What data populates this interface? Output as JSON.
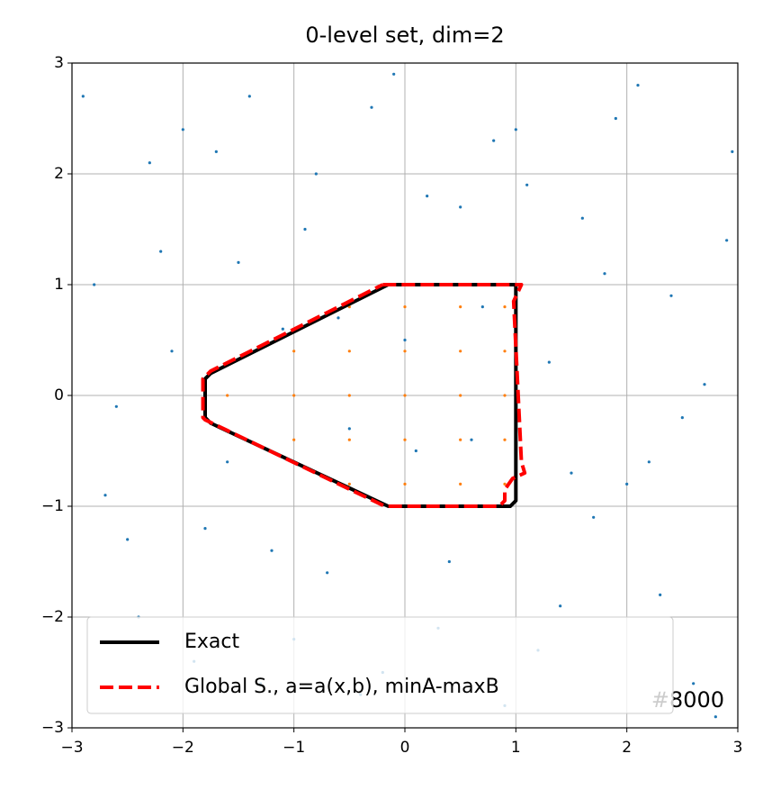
{
  "chart_data": {
    "type": "scatter",
    "title": "0-level set, dim=2",
    "annotation": "#8000",
    "xlim": [
      -3,
      3
    ],
    "ylim": [
      -3,
      3
    ],
    "xticks": [
      {
        "value": -3,
        "label": "−3"
      },
      {
        "value": -2,
        "label": "−2"
      },
      {
        "value": -1,
        "label": "−1"
      },
      0,
      1,
      2,
      3
    ],
    "yticks": [
      {
        "value": -3,
        "label": "−3"
      },
      {
        "value": -2,
        "label": "−2"
      },
      {
        "value": -1,
        "label": "−1"
      },
      0,
      1,
      2,
      3
    ],
    "grid": true,
    "legend": "lower left",
    "scatter_series": [
      {
        "color": "#1f77b4",
        "x": [
          -2.9,
          -2.5,
          -2.1,
          -1.7,
          -1.3,
          -0.9,
          -0.5,
          -0.1,
          0.3,
          0.7,
          1.1,
          1.5,
          1.9,
          2.3,
          2.7,
          -2.7,
          -2.3,
          -1.9,
          -1.5,
          -1.1,
          -0.7,
          -0.3,
          0.1,
          0.5,
          0.9,
          1.3,
          1.7,
          2.1,
          2.5,
          2.9,
          -2.8,
          -2.4,
          -2.0,
          -1.6,
          -1.2,
          -0.8,
          -0.4,
          0.0,
          0.4,
          0.8,
          1.2,
          1.6,
          2.0,
          2.4,
          2.8,
          -2.6,
          -2.2,
          -1.8,
          -1.4,
          -1.0,
          -0.6,
          -0.2,
          0.2,
          0.6,
          1.0,
          1.4,
          1.8,
          2.2,
          2.6,
          2.95
        ],
        "y": [
          2.7,
          -1.3,
          0.4,
          2.2,
          -2.6,
          1.5,
          -0.3,
          2.9,
          -2.1,
          0.8,
          1.9,
          -0.7,
          2.5,
          -1.8,
          0.1,
          -0.9,
          2.1,
          -2.4,
          1.2,
          0.6,
          -1.6,
          2.6,
          -0.5,
          1.7,
          -2.8,
          0.3,
          -1.1,
          2.8,
          -0.2,
          1.4,
          1.0,
          -2.0,
          2.4,
          -0.6,
          -1.4,
          2.0,
          -2.7,
          0.5,
          -1.5,
          2.3,
          -2.3,
          1.6,
          -0.8,
          0.9,
          -2.9,
          -0.1,
          1.3,
          -1.2,
          2.7,
          -2.2,
          0.7,
          -2.5,
          1.8,
          -0.4,
          2.4,
          -1.9,
          1.1,
          -0.6,
          -2.6,
          2.2
        ]
      },
      {
        "color": "#ff7f0e",
        "x": [
          -0.5,
          0,
          0.5,
          0.9,
          -1.0,
          -0.5,
          0,
          0.5,
          0.9,
          -1.6,
          -1.0,
          -0.5,
          0,
          0.5,
          0.9,
          -1.0,
          -0.5,
          0,
          0.5,
          0.9,
          -0.5,
          0,
          0.5,
          0.9
        ],
        "y": [
          0.8,
          0.8,
          0.8,
          0.8,
          0.4,
          0.4,
          0.4,
          0.4,
          0.4,
          0,
          0,
          0,
          0,
          0,
          0,
          -0.4,
          -0.4,
          -0.4,
          -0.4,
          -0.4,
          -0.8,
          -0.8,
          -0.8,
          -0.8
        ]
      }
    ],
    "series": [
      {
        "name": "Exact",
        "color": "#000000",
        "dashed": false,
        "x": [
          -0.15,
          1.0,
          1.0,
          0.95,
          -0.15,
          -1.75,
          -1.8,
          -1.8,
          -1.75,
          -0.15
        ],
        "y": [
          1,
          1,
          -0.95,
          -1,
          -1,
          -0.25,
          -0.2,
          0.15,
          0.2,
          1
        ]
      },
      {
        "name": "Global S., a=a(x,b), minA-maxB",
        "color": "#ff0000",
        "dashed": true,
        "x": [
          -0.2,
          1.05,
          0.98,
          1.05,
          1.08,
          0.97,
          0.9,
          0.9,
          0.85,
          -0.18,
          -1.8,
          -1.82,
          -1.82,
          -1.75,
          -0.2
        ],
        "y": [
          1,
          1,
          0.85,
          -0.6,
          -0.7,
          -0.75,
          -0.85,
          -0.95,
          -1,
          -1,
          -0.22,
          -0.2,
          0.15,
          0.22,
          1
        ]
      }
    ]
  }
}
